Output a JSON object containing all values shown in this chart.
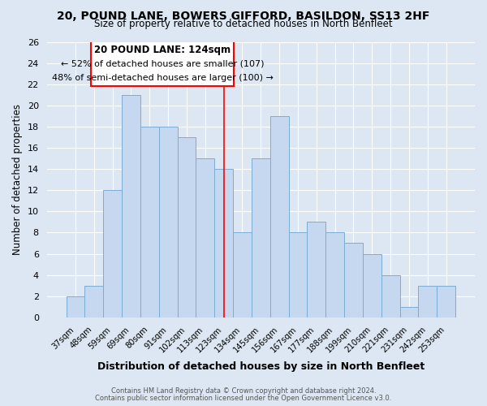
{
  "title": "20, POUND LANE, BOWERS GIFFORD, BASILDON, SS13 2HF",
  "subtitle": "Size of property relative to detached houses in North Benfleet",
  "xlabel": "Distribution of detached houses by size in North Benfleet",
  "ylabel": "Number of detached properties",
  "bar_color": "#c5d8f0",
  "bar_edgecolor": "#7aadd4",
  "grid_color": "#ffffff",
  "bg_color": "#dce7f3",
  "categories": [
    "37sqm",
    "48sqm",
    "59sqm",
    "69sqm",
    "80sqm",
    "91sqm",
    "102sqm",
    "113sqm",
    "123sqm",
    "134sqm",
    "145sqm",
    "156sqm",
    "167sqm",
    "177sqm",
    "188sqm",
    "199sqm",
    "210sqm",
    "221sqm",
    "231sqm",
    "242sqm",
    "253sqm"
  ],
  "values": [
    2,
    3,
    12,
    21,
    18,
    18,
    17,
    15,
    14,
    8,
    15,
    19,
    8,
    9,
    8,
    7,
    6,
    4,
    1,
    3,
    3
  ],
  "ylim": [
    0,
    26
  ],
  "yticks": [
    0,
    2,
    4,
    6,
    8,
    10,
    12,
    14,
    16,
    18,
    20,
    22,
    24,
    26
  ],
  "reference_line_index": 8,
  "annotation_title": "20 POUND LANE: 124sqm",
  "annotation_line1": "← 52% of detached houses are smaller (107)",
  "annotation_line2": "48% of semi-detached houses are larger (100) →",
  "footer_line1": "Contains HM Land Registry data © Crown copyright and database right 2024.",
  "footer_line2": "Contains public sector information licensed under the Open Government Licence v3.0."
}
